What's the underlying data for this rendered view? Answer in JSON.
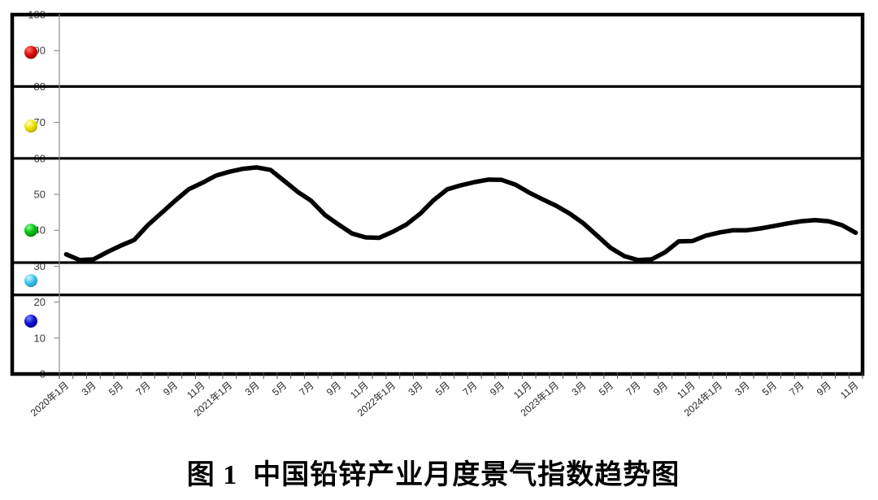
{
  "caption": "图 1  中国铅锌产业月度景气指数趋势图",
  "chart_data": {
    "type": "line",
    "title": "图 1 中国铅锌产业月度景气指数趋势图",
    "line_color": "#000000",
    "background": "#ffffff",
    "x_axis": {
      "range_start": "2020年1月",
      "range_end": "2024年11月",
      "months_total": 59,
      "tick_labels": [
        "2020年1月",
        "3月",
        "5月",
        "7月",
        "9月",
        "11月",
        "2021年1月",
        "3月",
        "5月",
        "7月",
        "9月",
        "11月",
        "2022年1月",
        "3月",
        "5月",
        "7月",
        "9月",
        "11月",
        "2023年1月",
        "3月",
        "5月",
        "7月",
        "9月",
        "11月",
        "2024年1月",
        "3月",
        "5月",
        "7月",
        "9月",
        "11月"
      ]
    },
    "y_axis": {
      "ticks": [
        0,
        10,
        20,
        30,
        40,
        50,
        60,
        70,
        80,
        90,
        100
      ],
      "ylim": [
        0,
        100
      ]
    },
    "zone_boundaries": [
      0,
      22,
      31,
      60,
      80,
      100
    ],
    "signal_markers": [
      {
        "name": "overheat-red",
        "value": 89.5,
        "base": "#e01010",
        "light": "#ff7a6a",
        "dark": "#8b0000"
      },
      {
        "name": "hot-yellow",
        "value": 69.0,
        "base": "#f0e400",
        "light": "#ffffd0",
        "dark": "#b0a000"
      },
      {
        "name": "normal-green",
        "value": 40.0,
        "base": "#00c418",
        "light": "#90ff90",
        "dark": "#007a0a"
      },
      {
        "name": "cool-lightblue",
        "value": 26.0,
        "base": "#45c8f0",
        "light": "#d8f6ff",
        "dark": "#1888b8"
      },
      {
        "name": "cold-blue",
        "value": 14.7,
        "base": "#1212d6",
        "light": "#7d8cff",
        "dark": "#000080"
      }
    ],
    "series": [
      {
        "name": "中国铅锌产业月度景气指数",
        "start": "2020-01",
        "interval": "month",
        "values": [
          33.3,
          31.7,
          31.9,
          33.9,
          35.7,
          37.3,
          41.4,
          44.8,
          48.2,
          51.4,
          53.2,
          55.2,
          56.3,
          57.1,
          57.5,
          56.8,
          53.8,
          50.7,
          48.2,
          44.3,
          41.6,
          39.1,
          38.0,
          37.9,
          39.6,
          41.6,
          44.6,
          48.4,
          51.4,
          52.5,
          53.4,
          54.1,
          54.0,
          52.7,
          50.5,
          48.6,
          46.8,
          44.6,
          41.9,
          38.5,
          35.1,
          32.8,
          31.7,
          31.9,
          33.9,
          36.9,
          37.0,
          38.5,
          39.4,
          40.0,
          40.0,
          40.5,
          41.2,
          41.9,
          42.5,
          42.8,
          42.5,
          41.4,
          39.3
        ]
      }
    ]
  }
}
